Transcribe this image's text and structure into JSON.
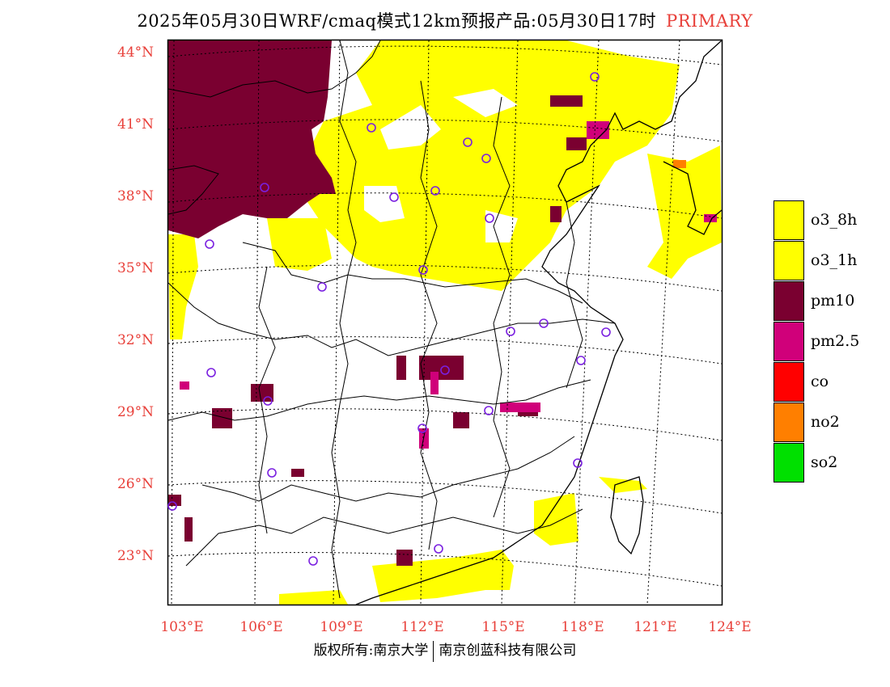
{
  "header": {
    "title": "2025年05月30日WRF/cmaq模式12km预报产品:05月30日17时",
    "tag": "PRIMARY"
  },
  "map": {
    "lon_labels": [
      "103°E",
      "106°E",
      "109°E",
      "112°E",
      "115°E",
      "118°E",
      "121°E",
      "124°E"
    ],
    "lat_labels": [
      "44°N",
      "41°N",
      "38°N",
      "35°N",
      "32°N",
      "29°N",
      "26°N",
      "23°N"
    ],
    "primary_pollutant_colors": {
      "o3_8h": "#ffff00",
      "o3_1h": "#ffff00",
      "pm10": "#7a0030",
      "pm2.5": "#d0007a",
      "co": "#ff0000",
      "no2": "#ff7f00",
      "so2": "#00e000"
    },
    "station_marker": "purple-circle"
  },
  "legend": {
    "items": [
      {
        "label": "o3_8h",
        "color": "#ffff00"
      },
      {
        "label": "o3_1h",
        "color": "#ffff00"
      },
      {
        "label": "pm10",
        "color": "#7a0030"
      },
      {
        "label": "pm2.5",
        "color": "#d0007a"
      },
      {
        "label": "co",
        "color": "#ff0000"
      },
      {
        "label": "no2",
        "color": "#ff7f00"
      },
      {
        "label": "so2",
        "color": "#00e000"
      }
    ]
  },
  "footer": {
    "left": "版权所有:南京大学",
    "right": "南京创蓝科技有限公司"
  }
}
